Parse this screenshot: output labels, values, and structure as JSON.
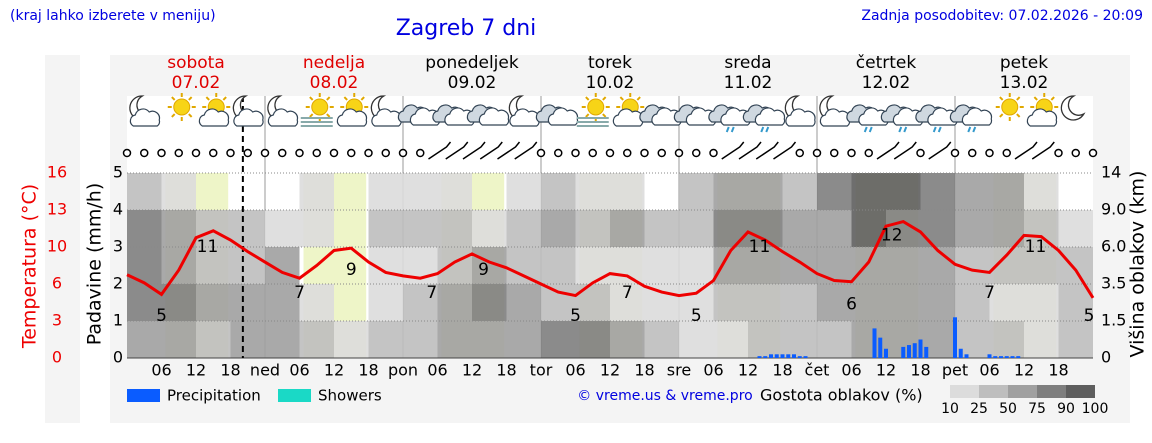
{
  "header": {
    "hint": "(kraj lahko izberete v meniju)",
    "title": "Zagreb 7 dni",
    "updated": "Zadnja posodobitev: 07.02.2026 - 20:09"
  },
  "chart_data": {
    "type": "line",
    "days": [
      {
        "name": "sobota",
        "date": "07.02",
        "color": "#e00000"
      },
      {
        "name": "nedelja",
        "date": "08.02",
        "color": "#e00000"
      },
      {
        "name": "ponedeljek",
        "date": "09.02",
        "color": "#000000"
      },
      {
        "name": "torek",
        "date": "10.02",
        "color": "#000000"
      },
      {
        "name": "sreda",
        "date": "11.02",
        "color": "#000000"
      },
      {
        "name": "četrtek",
        "date": "12.02",
        "color": "#000000"
      },
      {
        "name": "petek",
        "date": "13.02",
        "color": "#000000"
      }
    ],
    "xlim": [
      0,
      168
    ],
    "xticks": [
      {
        "value": 6,
        "label": "06"
      },
      {
        "value": 12,
        "label": "12"
      },
      {
        "value": 18,
        "label": "18"
      },
      {
        "value": 24,
        "label": "ned"
      },
      {
        "value": 30,
        "label": "06"
      },
      {
        "value": 36,
        "label": "12"
      },
      {
        "value": 42,
        "label": "18"
      },
      {
        "value": 48,
        "label": "pon"
      },
      {
        "value": 54,
        "label": "06"
      },
      {
        "value": 60,
        "label": "12"
      },
      {
        "value": 66,
        "label": "18"
      },
      {
        "value": 72,
        "label": "tor"
      },
      {
        "value": 78,
        "label": "06"
      },
      {
        "value": 84,
        "label": "12"
      },
      {
        "value": 90,
        "label": "18"
      },
      {
        "value": 96,
        "label": "sre"
      },
      {
        "value": 102,
        "label": "06"
      },
      {
        "value": 108,
        "label": "12"
      },
      {
        "value": 114,
        "label": "18"
      },
      {
        "value": 120,
        "label": "čet"
      },
      {
        "value": 126,
        "label": "06"
      },
      {
        "value": 132,
        "label": "12"
      },
      {
        "value": 138,
        "label": "18"
      },
      {
        "value": 144,
        "label": "pet"
      },
      {
        "value": 150,
        "label": "06"
      },
      {
        "value": 156,
        "label": "12"
      },
      {
        "value": 162,
        "label": "18"
      }
    ],
    "ylabel": "Padavine (mm/h)",
    "ylim": [
      0,
      5
    ],
    "yticks": [
      0,
      1,
      2,
      3,
      4,
      5
    ],
    "y2lim": [
      0,
      16
    ],
    "y2ticks": [
      0,
      {
        "value": 3.2,
        "label": "3"
      },
      {
        "value": 6.4,
        "label": "6"
      },
      {
        "value": 9.6,
        "label": "10"
      },
      {
        "value": 12.8,
        "label": "13"
      },
      16
    ],
    "y3label": "Višina oblakov (km)",
    "y3ticks": [
      0,
      1.5,
      3.5,
      {
        "value": 6,
        "label": "6.0"
      },
      {
        "value": 9,
        "label": "9.0"
      },
      14
    ],
    "grid": true,
    "sunrise": 6.7,
    "sunset": 17.6,
    "now": 20.15,
    "series": [
      {
        "name": "Temperatura (°C)",
        "color": "#ee0000",
        "axis": "y2",
        "x": [
          0,
          3,
          6,
          9,
          12,
          15,
          18,
          21,
          24,
          27,
          30,
          33,
          36,
          39,
          42,
          45,
          48,
          51,
          54,
          57,
          60,
          63,
          66,
          69,
          72,
          75,
          78,
          81,
          84,
          87,
          90,
          93,
          96,
          99,
          102,
          105,
          108,
          111,
          114,
          117,
          120,
          123,
          126,
          129,
          132,
          135,
          138,
          141,
          144,
          147,
          150,
          153,
          156,
          159,
          162,
          165,
          168
        ],
        "values": [
          7.2,
          6.5,
          5.5,
          7.6,
          10.4,
          11,
          10.2,
          9.2,
          8.3,
          7.4,
          6.9,
          8.0,
          9.3,
          9.5,
          8.3,
          7.4,
          7.1,
          6.9,
          7.3,
          8.3,
          9.0,
          8.3,
          7.8,
          7.1,
          6.4,
          5.7,
          5.4,
          6.5,
          7.3,
          7.1,
          6.2,
          5.7,
          5.4,
          5.6,
          6.7,
          9.3,
          10.9,
          10.2,
          9.2,
          8.3,
          7.3,
          6.7,
          6.6,
          8.3,
          11.4,
          11.8,
          10.9,
          9.3,
          8.1,
          7.6,
          7.4,
          8.9,
          10.6,
          10.5,
          9.3,
          7.6,
          5.2
        ]
      }
    ],
    "temp_labels": [
      {
        "x": 6,
        "value": 5
      },
      {
        "x": 14,
        "value": 11
      },
      {
        "x": 30,
        "value": 7
      },
      {
        "x": 39,
        "value": 9
      },
      {
        "x": 53,
        "value": 7
      },
      {
        "x": 62,
        "value": 9
      },
      {
        "x": 78,
        "value": 5
      },
      {
        "x": 87,
        "value": 7
      },
      {
        "x": 99,
        "value": 5
      },
      {
        "x": 110,
        "value": 11
      },
      {
        "x": 126,
        "value": 6
      },
      {
        "x": 133,
        "value": 12
      },
      {
        "x": 150,
        "value": 7
      },
      {
        "x": 158,
        "value": 11
      },
      {
        "x": 168,
        "value": 5
      }
    ],
    "precipitation": {
      "name": "Precipitation",
      "color": "#0a5cff",
      "x": [
        110,
        111,
        112,
        113,
        114,
        115,
        116,
        117,
        118,
        130,
        131,
        132,
        135,
        136,
        137,
        138,
        139,
        144,
        145,
        146,
        150,
        151,
        152,
        153,
        154,
        155
      ],
      "values": [
        0.05,
        0.05,
        0.1,
        0.1,
        0.1,
        0.1,
        0.1,
        0.05,
        0.05,
        0.8,
        0.55,
        0.25,
        0.3,
        0.35,
        0.4,
        0.5,
        0.3,
        1.1,
        0.25,
        0.1,
        0.1,
        0.05,
        0.05,
        0.05,
        0.05,
        0.05
      ]
    },
    "showers": {
      "name": "Showers",
      "color": "#1ad9c6"
    },
    "cloud_density": {
      "name": "Gostota oblakov (%)",
      "levels": [
        10,
        25,
        50,
        75,
        90,
        100
      ],
      "colors": [
        "#dcdcdc",
        "#bebebe",
        "#a0a0a0",
        "#7e7e7e",
        "#5e5e5e"
      ],
      "x": [
        0,
        6,
        12,
        18,
        24,
        30,
        36,
        42,
        48,
        54,
        60,
        66,
        72,
        78,
        84,
        90,
        96,
        102,
        108,
        114,
        120,
        126,
        132,
        138,
        144,
        150,
        156,
        162
      ],
      "rows": [
        [
          50,
          50,
          25,
          50,
          50,
          25,
          10,
          25,
          25,
          50,
          50,
          50,
          75,
          75,
          50,
          25,
          10,
          10,
          25,
          25,
          25,
          50,
          50,
          50,
          25,
          25,
          10,
          25
        ],
        [
          75,
          75,
          50,
          50,
          50,
          10,
          0,
          10,
          25,
          50,
          75,
          50,
          25,
          25,
          10,
          10,
          10,
          25,
          25,
          25,
          50,
          50,
          50,
          50,
          25,
          10,
          10,
          25
        ],
        [
          75,
          50,
          25,
          25,
          50,
          0,
          0,
          10,
          10,
          25,
          50,
          25,
          25,
          10,
          10,
          10,
          10,
          50,
          50,
          50,
          50,
          50,
          50,
          50,
          25,
          25,
          25,
          25
        ],
        [
          75,
          50,
          25,
          25,
          10,
          10,
          0,
          25,
          25,
          25,
          10,
          25,
          50,
          25,
          50,
          25,
          25,
          75,
          75,
          50,
          50,
          90,
          75,
          75,
          50,
          50,
          25,
          10
        ],
        [
          25,
          10,
          0,
          0,
          0,
          10,
          0,
          10,
          10,
          10,
          0,
          10,
          25,
          10,
          10,
          0,
          25,
          50,
          50,
          25,
          75,
          90,
          90,
          75,
          50,
          50,
          10,
          0
        ]
      ]
    },
    "credit": "© vreme.us & vreme.pro"
  }
}
